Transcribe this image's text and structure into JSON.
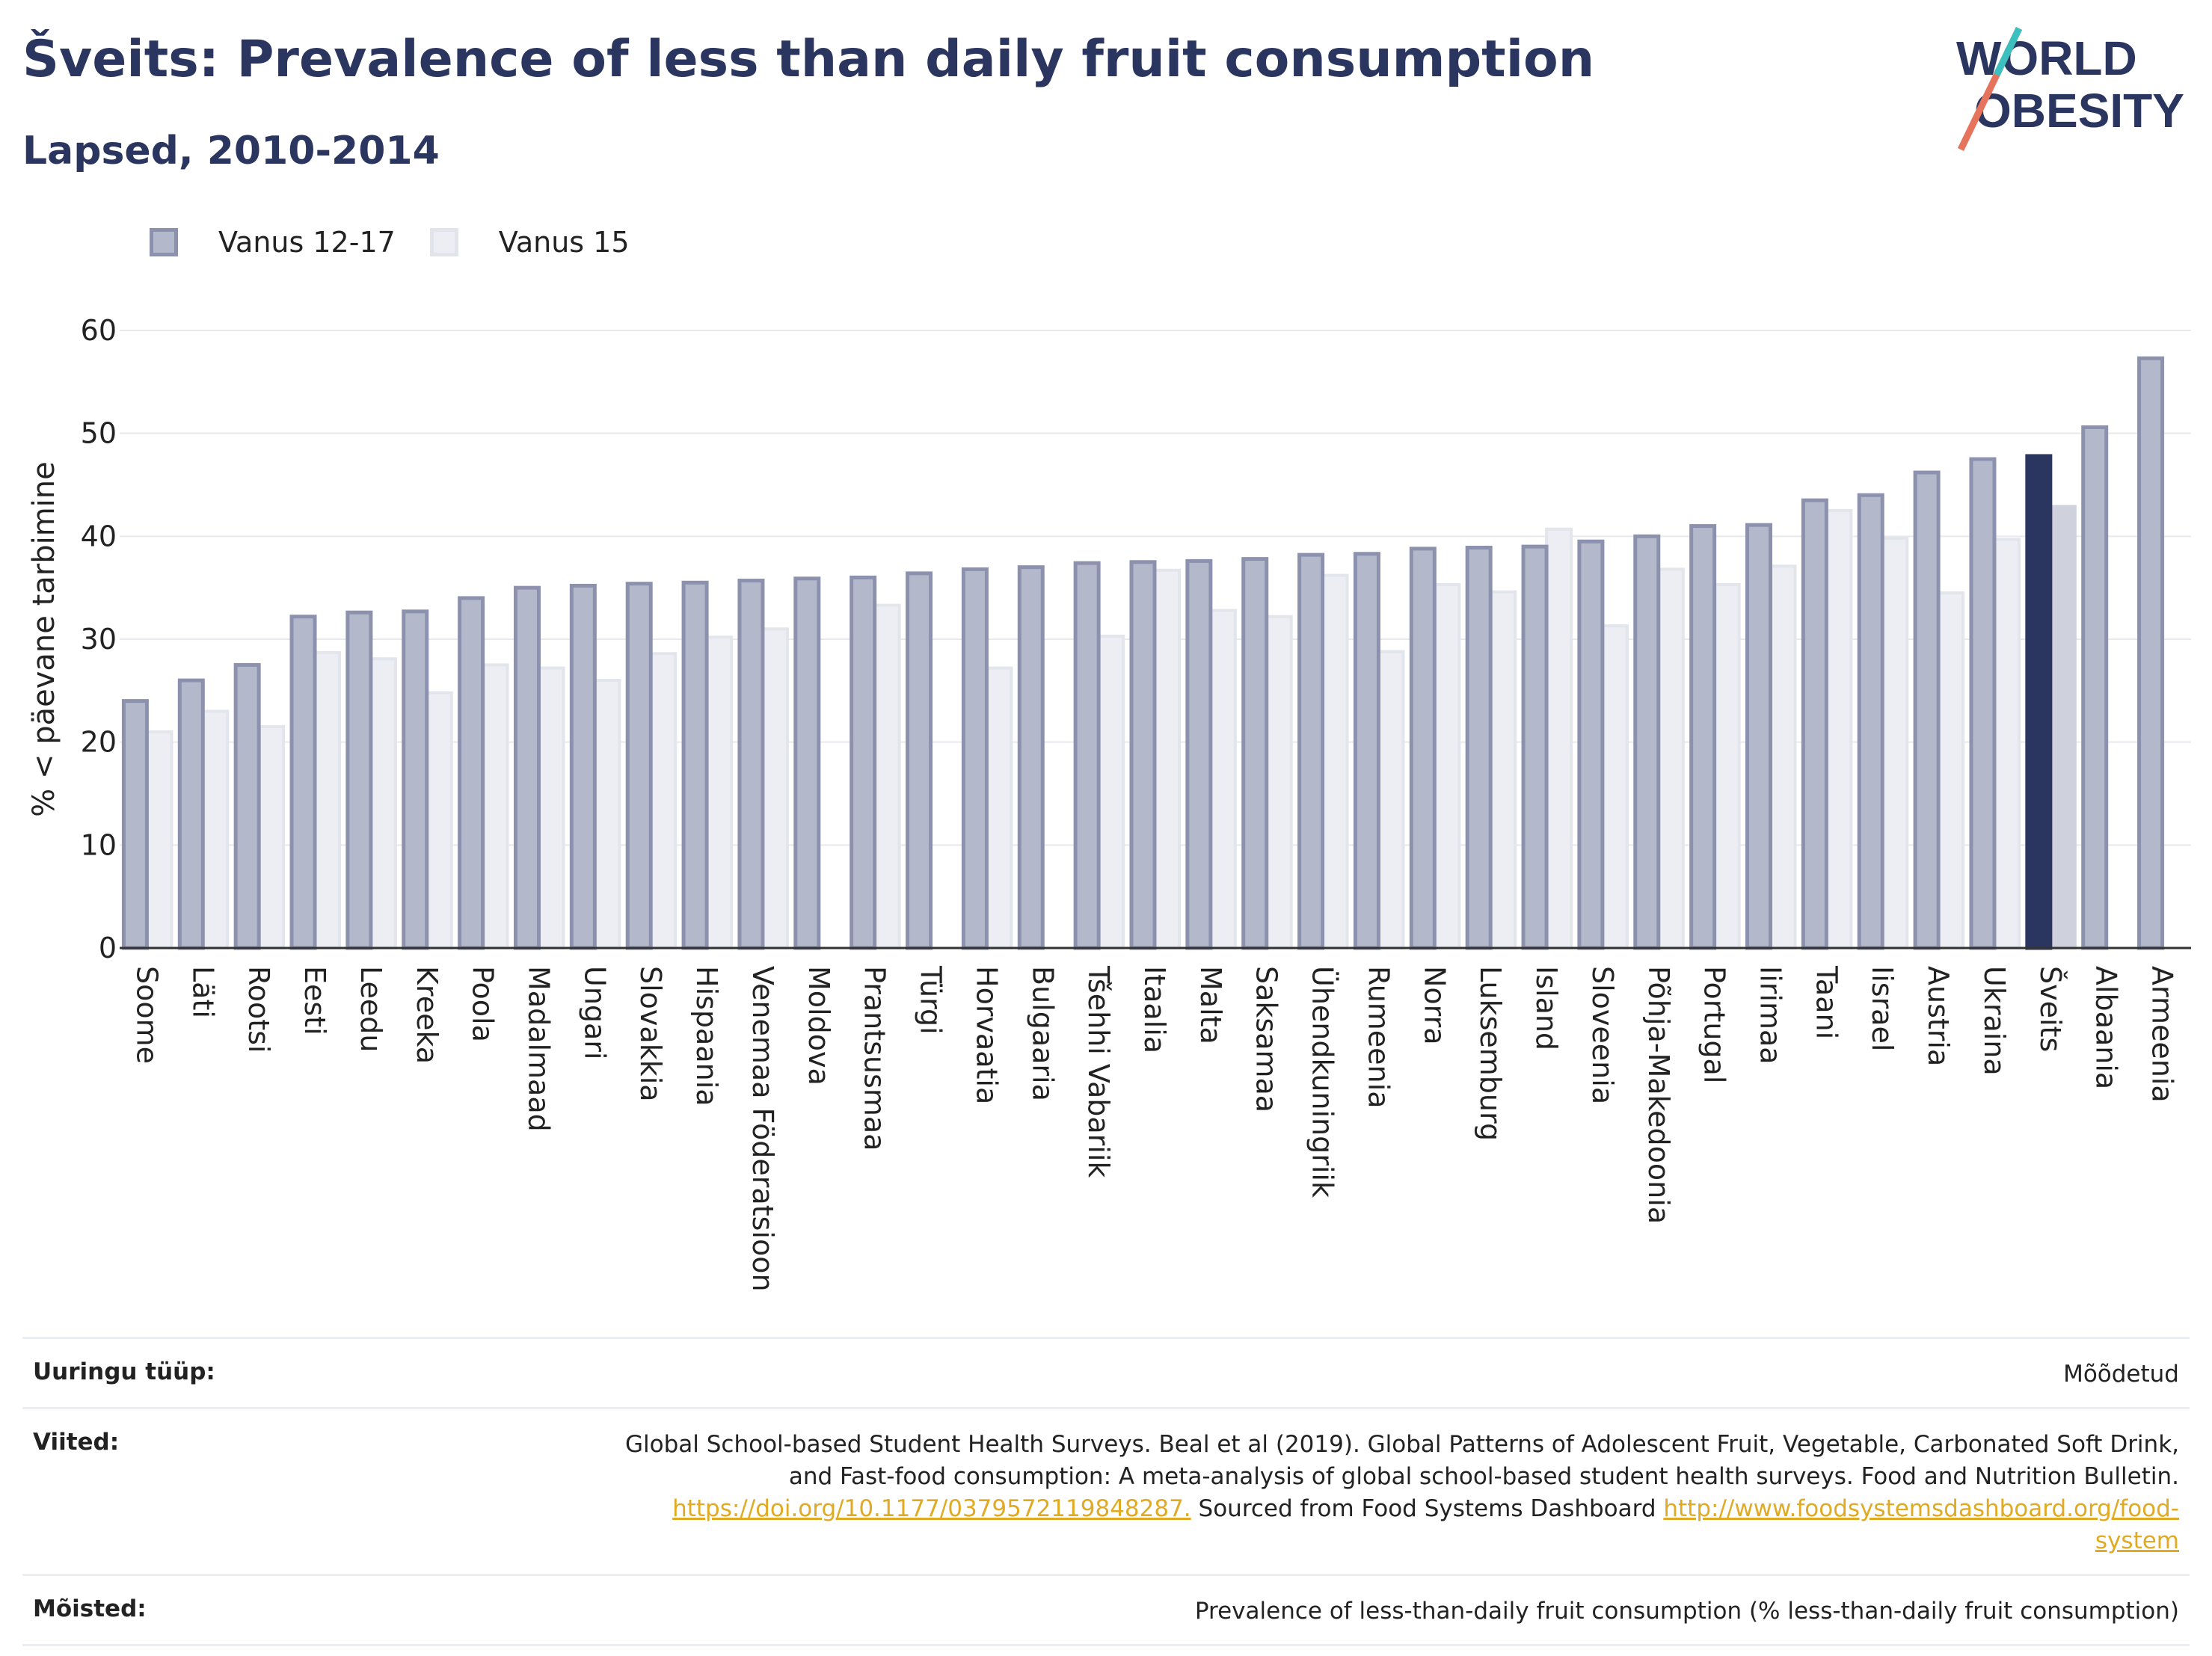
{
  "header": {
    "title": "Šveits: Prevalence of less than daily fruit consumption",
    "subtitle": "Lapsed, 2010-2014"
  },
  "logo": {
    "line1": "WORLD",
    "line2": "OBESITY"
  },
  "colors": {
    "series1": "#b4b8cb",
    "series1_border": "#8c92ad",
    "series2": "#eceef3",
    "highlight1": "#2b3660",
    "highlight2": "#cfd1dc",
    "text": "#2b3660"
  },
  "chart_data": {
    "type": "bar",
    "title": "Šveits: Prevalence of less than daily fruit consumption",
    "subtitle": "Lapsed, 2010-2014",
    "ylabel": "% < päevane tarbimine",
    "xlabel": "",
    "ylim": [
      0,
      60
    ],
    "yticks": [
      0,
      10,
      20,
      30,
      40,
      50,
      60
    ],
    "grid": true,
    "legend_position": "top-left",
    "highlight_category": "Šveits",
    "categories": [
      "Soome",
      "Läti",
      "Rootsi",
      "Eesti",
      "Leedu",
      "Kreeka",
      "Poola",
      "Madalmaad",
      "Ungari",
      "Slovakkia",
      "Hispaania",
      "Venemaa Föderatsioon",
      "Moldova",
      "Prantsusmaa",
      "Türgi",
      "Horvaatia",
      "Bulgaaria",
      "Tšehhi Vabariik",
      "Itaalia",
      "Malta",
      "Saksamaa",
      "Ühendkuningriik",
      "Rumeenia",
      "Norra",
      "Luksemburg",
      "Island",
      "Sloveenia",
      "Põhja-Makedoonia",
      "Portugal",
      "Iirimaa",
      "Taani",
      "Iisrael",
      "Austria",
      "Ukraina",
      "Šveits",
      "Albaania",
      "Armeenia"
    ],
    "series": [
      {
        "name": "Vanus 12-17",
        "values": [
          24.0,
          26.0,
          27.5,
          32.2,
          32.6,
          32.7,
          34.0,
          35.0,
          35.2,
          35.4,
          35.5,
          35.7,
          35.9,
          36.0,
          36.4,
          36.8,
          37.0,
          37.4,
          37.5,
          37.6,
          37.8,
          38.2,
          38.3,
          38.8,
          38.9,
          39.0,
          39.5,
          40.0,
          41.0,
          41.1,
          43.5,
          44.0,
          46.2,
          47.5,
          47.8,
          50.6,
          57.3
        ]
      },
      {
        "name": "Vanus 15",
        "values": [
          21.0,
          23.0,
          21.5,
          28.7,
          28.1,
          24.8,
          27.5,
          27.2,
          26.0,
          28.6,
          30.2,
          31.0,
          null,
          33.3,
          null,
          27.2,
          null,
          30.3,
          36.7,
          32.8,
          32.2,
          36.2,
          28.8,
          35.3,
          34.6,
          40.7,
          31.3,
          36.8,
          35.3,
          37.1,
          42.5,
          39.8,
          34.5,
          39.7,
          42.9,
          null,
          null
        ]
      }
    ]
  },
  "info": {
    "survey_type_label": "Uuringu tüüp:",
    "survey_type_value": "Mõõdetud",
    "references_label": "Viited:",
    "references_line1": "Global School-based Student Health Surveys. Beal et al (2019). Global Patterns of Adolescent Fruit, Vegetable, Carbonated Soft Drink,",
    "references_line2": "and Fast-food consumption: A meta-analysis of global school-based student health surveys. Food and Nutrition Bulletin.",
    "references_link1": "https://doi.org/10.1177/0379572119848287.",
    "references_middle": " Sourced from Food Systems Dashboard ",
    "references_link2a": "http://www.foodsystemsdashboard.org/food-",
    "references_link2b": "system",
    "definitions_label": "Mõisted:",
    "definitions_value": "Prevalence of less-than-daily fruit consumption (% less-than-daily fruit consumption)"
  }
}
